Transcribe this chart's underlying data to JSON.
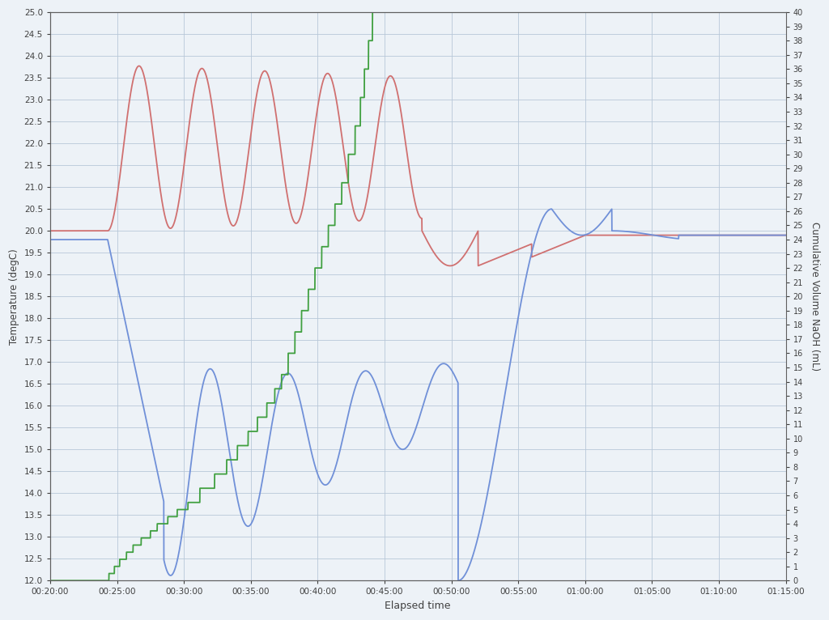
{
  "xlabel": "Elapsed time",
  "ylabel_left": "Temperature (degC)",
  "ylabel_right": "Cumulative Volume NaOH (mL)",
  "bg_color": "#edf2f7",
  "grid_color": "#b8c8d8",
  "x_start_min": 20,
  "x_end_min": 75,
  "y_left_min": 12,
  "y_left_max": 25,
  "y_right_min": 0,
  "y_right_max": 40,
  "red_color": "#d07070",
  "blue_color": "#7090d8",
  "green_color": "#40a040",
  "linewidth": 1.3
}
